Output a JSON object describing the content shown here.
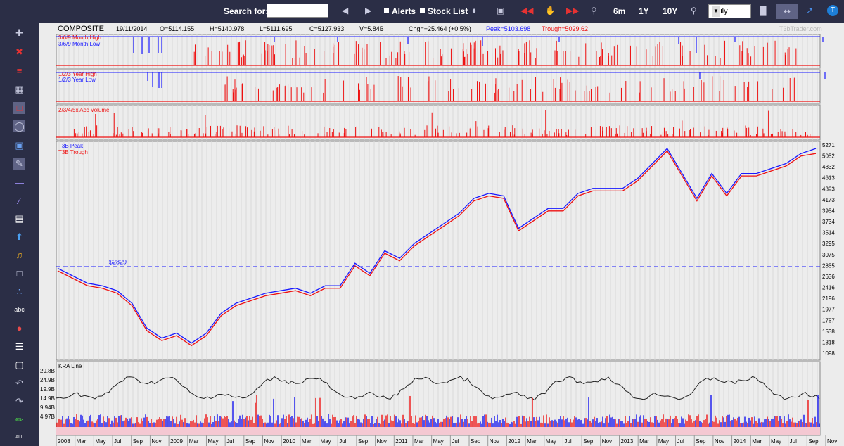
{
  "toolbar": {
    "search_label": "Search for:",
    "search_value": "",
    "alerts_label": "Alerts",
    "stocklist_label": "Stock List",
    "periods": [
      "6m",
      "1Y",
      "10Y"
    ],
    "interval": "daily",
    "icons": [
      "prev-arrow-icon",
      "next-arrow-icon",
      "bell-icon",
      "camera-icon",
      "rewind-icon",
      "hand-icon",
      "fast-forward-icon",
      "zoom-out-icon",
      "zoom-in-icon",
      "candlestick-icon",
      "line-chart-icon",
      "trendline-icon",
      "t3b-logo-icon"
    ]
  },
  "sidebar": {
    "tools": [
      "crosshair",
      "delete-drawing",
      "horizontal-lines",
      "grid-lines",
      "select-tool",
      "zoom-tool",
      "save",
      "annotate",
      "horizontal-line",
      "trend-line",
      "hatch",
      "up-arrow",
      "alert-bell",
      "rectangle-select",
      "scatter",
      "text-abc",
      "color-palette",
      "layers",
      "erase",
      "undo",
      "redo",
      "draw",
      "all"
    ],
    "abc_label": "abc",
    "all_label": "ALL"
  },
  "quote": {
    "symbol": "COMPOSITE",
    "date": "19/11/2014",
    "open": "O=5114.155",
    "high": "H=5140.978",
    "low": "L=5111.695",
    "close": "C=5127.933",
    "volume": "V=5.84B",
    "change": "Chg=+25.464 (+0.5%)",
    "peak": "Peak=5103.698",
    "trough": "Trough=5029.62",
    "watermark": "T3bTrader.com"
  },
  "panels": {
    "month_high": "3/6/9 Month High",
    "month_low": "3/6/9 Month Low",
    "year_high": "1/2/3 Year High",
    "year_low": "1/2/3 Year Low",
    "acc_volume": "2/3/4/5x Acc Volume",
    "t3b_peak": "T3B Peak",
    "t3b_trough": "T3B Trough",
    "kra_line": "KRA Line"
  },
  "colors": {
    "peak": "#1a1aff",
    "trough": "#ee1111",
    "background": "#ececec",
    "toolbar": "#2b2e46"
  },
  "chart_data": {
    "type": "line",
    "title": "COMPOSITE",
    "price_ticks": [
      5271,
      5052,
      4832,
      4613,
      4393,
      4173,
      3954,
      3734,
      3514,
      3295,
      3075,
      2855,
      2636,
      2416,
      2196,
      1977,
      1757,
      1538,
      1318,
      1098
    ],
    "volume_ticks": [
      "29.8B",
      "24.9B",
      "19.9B",
      "14.9B",
      "9.94B",
      "4.97B"
    ],
    "reference_line": {
      "label": "$2829",
      "value": 2829
    },
    "x_labels": [
      "2008",
      "Mar",
      "May",
      "Jul",
      "Sep",
      "Nov",
      "2009",
      "Mar",
      "May",
      "Jul",
      "Sep",
      "Nov",
      "2010",
      "Mar",
      "May",
      "Jul",
      "Sep",
      "Nov",
      "2011",
      "Mar",
      "May",
      "Jul",
      "Sep",
      "Nov",
      "2012",
      "Mar",
      "May",
      "Jul",
      "Sep",
      "Nov",
      "2013",
      "Mar",
      "May",
      "Jul",
      "Sep",
      "Nov",
      "2014",
      "Mar",
      "May",
      "Jul",
      "Sep",
      "Nov"
    ],
    "ylim": [
      1000,
      5300
    ],
    "series": [
      {
        "name": "T3B Peak",
        "color": "#1a1aff",
        "values": [
          2800,
          2650,
          2500,
          2450,
          2350,
          2100,
          1600,
          1400,
          1500,
          1300,
          1500,
          1900,
          2100,
          2200,
          2300,
          2350,
          2400,
          2300,
          2450,
          2450,
          2900,
          2700,
          3150,
          3000,
          3300,
          3500,
          3700,
          3900,
          4200,
          4300,
          4250,
          3600,
          3800,
          4000,
          4000,
          4300,
          4400,
          4400,
          4400,
          4600,
          4900,
          5200,
          4700,
          4200,
          4700,
          4300,
          4700,
          4700,
          4800,
          4900,
          5100,
          5200
        ]
      },
      {
        "name": "T3B Trough",
        "color": "#ee1111",
        "values": [
          2750,
          2600,
          2450,
          2400,
          2300,
          2050,
          1550,
          1350,
          1450,
          1250,
          1450,
          1850,
          2050,
          2150,
          2250,
          2300,
          2350,
          2250,
          2400,
          2400,
          2850,
          2650,
          3100,
          2950,
          3250,
          3450,
          3650,
          3850,
          4150,
          4250,
          4200,
          3550,
          3750,
          3950,
          3950,
          4250,
          4350,
          4350,
          4350,
          4550,
          4850,
          5150,
          4650,
          4150,
          4650,
          4250,
          4650,
          4650,
          4750,
          4850,
          5050,
          5100
        ]
      }
    ]
  }
}
